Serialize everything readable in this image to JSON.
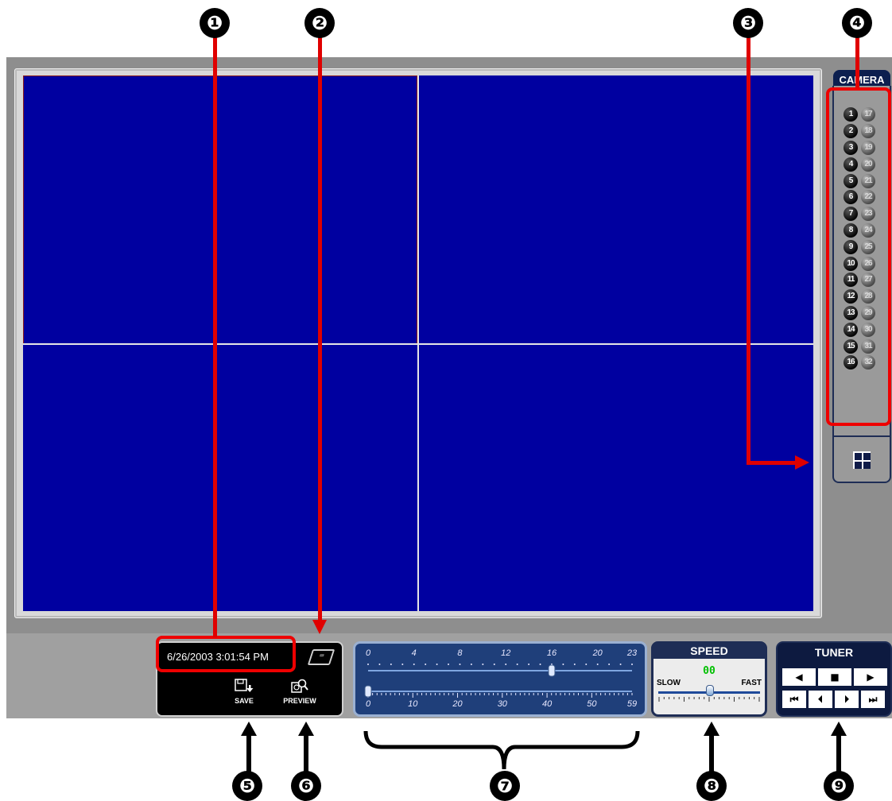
{
  "window": {
    "video_background": "#0000a0",
    "layout_icon": "quad-grid-icon"
  },
  "camera_panel": {
    "header": "CAMERA",
    "rows": [
      [
        "1",
        "17"
      ],
      [
        "2",
        "18"
      ],
      [
        "3",
        "19"
      ],
      [
        "4",
        "20"
      ],
      [
        "5",
        "21"
      ],
      [
        "6",
        "22"
      ],
      [
        "7",
        "23"
      ],
      [
        "8",
        "24"
      ],
      [
        "9",
        "25"
      ],
      [
        "10",
        "26"
      ],
      [
        "11",
        "27"
      ],
      [
        "12",
        "28"
      ],
      [
        "13",
        "29"
      ],
      [
        "14",
        "30"
      ],
      [
        "15",
        "31"
      ],
      [
        "16",
        "32"
      ]
    ]
  },
  "info_panel": {
    "datetime": "6/26/2003 3:01:54 PM",
    "save_label": "SAVE",
    "preview_label": "PREVIEW",
    "keyboard_icon": "keyboard-icon"
  },
  "timeline": {
    "hour_labels": [
      "0",
      "4",
      "8",
      "12",
      "16",
      "20",
      "23"
    ],
    "minute_labels": [
      "0",
      "10",
      "20",
      "30",
      "40",
      "50",
      "59"
    ],
    "hour_value": 16,
    "minute_value": 0
  },
  "speed": {
    "header": "SPEED",
    "value": "00",
    "slow_label": "SLOW",
    "fast_label": "FAST"
  },
  "tuner": {
    "header": "TUNER",
    "row1": [
      "◀",
      "■",
      "▶"
    ],
    "row2": [
      "⏮",
      "⏴",
      "⏵",
      "⏭"
    ]
  },
  "callouts": [
    "❶",
    "❷",
    "❸",
    "❹",
    "❺",
    "❻",
    "❼",
    "❽",
    "❾"
  ],
  "colors": {
    "highlight": "#ee0000",
    "panel_navy": "#1e2d55"
  }
}
